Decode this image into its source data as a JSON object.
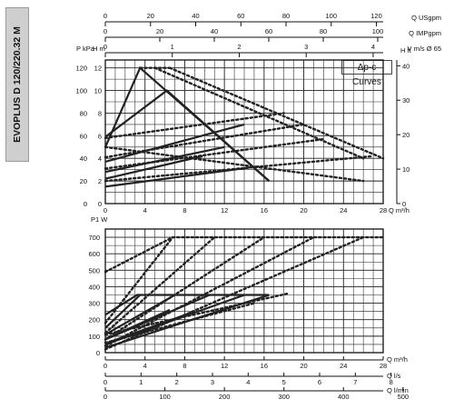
{
  "sidebar": {
    "model": "EVOPLUS D 120/220.32 M"
  },
  "chart_data": [
    {
      "type": "line",
      "title": "Δp-c Curves",
      "ylabel_left": "P kPa",
      "ylabel_right": "H m",
      "ylabel_right_ft": "H ft",
      "xlabel": "Q m³/h",
      "top_axes": [
        {
          "label": "Q USgpm",
          "ticks": [
            "0",
            "20",
            "40",
            "60",
            "80",
            "100",
            "120"
          ]
        },
        {
          "label": "Q IMPgpm",
          "ticks": [
            "0",
            "20",
            "40",
            "60",
            "80",
            "100"
          ]
        },
        {
          "label": "V m/s Ø 65",
          "ticks": [
            "0",
            "1",
            "2",
            "3",
            "4"
          ]
        }
      ],
      "x_ticks": [
        "0",
        "4",
        "8",
        "12",
        "16",
        "20",
        "24",
        "28"
      ],
      "y_kpa_ticks": [
        "0",
        "20",
        "40",
        "60",
        "80",
        "100",
        "120"
      ],
      "y_m_ticks": [
        "0",
        "2",
        "4",
        "6",
        "8",
        "10",
        "12"
      ],
      "y_ft_ticks": [
        "0",
        "10",
        "20",
        "30",
        "40"
      ],
      "xlim": [
        0,
        28
      ],
      "ylim_m": [
        0,
        12.7
      ],
      "grid": true,
      "series_solid": [
        {
          "x": [
            0,
            3.5,
            16.5
          ],
          "y": [
            5,
            12,
            2
          ]
        },
        {
          "x": [
            0,
            14
          ],
          "y": [
            3.7,
            7
          ]
        },
        {
          "x": [
            0,
            12
          ],
          "y": [
            2.8,
            5
          ]
        },
        {
          "x": [
            0,
            9.8
          ],
          "y": [
            2.2,
            4.2
          ]
        },
        {
          "x": [
            0,
            15.5
          ],
          "y": [
            1.5,
            3.3
          ]
        },
        {
          "x": [
            0,
            6.2,
            16.5
          ],
          "y": [
            5.9,
            10,
            2
          ]
        }
      ],
      "series_dotted": [
        {
          "x": [
            6.5,
            28
          ],
          "y": [
            12,
            4
          ]
        },
        {
          "x": [
            0,
            18
          ],
          "y": [
            5.8,
            8
          ]
        },
        {
          "x": [
            0,
            20
          ],
          "y": [
            4.1,
            7
          ]
        },
        {
          "x": [
            0,
            22
          ],
          "y": [
            3.1,
            5.7
          ]
        },
        {
          "x": [
            0,
            27
          ],
          "y": [
            2,
            4.2
          ]
        },
        {
          "x": [
            3.5,
            6.5
          ],
          "y": [
            12,
            12
          ]
        },
        {
          "x": [
            0,
            26
          ],
          "y": [
            5,
            2
          ]
        },
        {
          "x": [
            5,
            26
          ],
          "y": [
            12,
            4
          ]
        }
      ]
    },
    {
      "type": "line",
      "ylabel": "P1 W",
      "xlabel": "Q m³/h",
      "bottom_axes": [
        {
          "label": "Q m³/h",
          "ticks": [
            "0",
            "4",
            "8",
            "12",
            "16",
            "20",
            "24",
            "28"
          ]
        },
        {
          "label": "Q l/s",
          "ticks": [
            "0",
            "1",
            "2",
            "3",
            "4",
            "5",
            "6",
            "7",
            "8"
          ]
        },
        {
          "label": "Q l/min",
          "ticks": [
            "0",
            "100",
            "200",
            "300",
            "400",
            "500"
          ]
        }
      ],
      "y_ticks": [
        "0",
        "100",
        "200",
        "300",
        "400",
        "500",
        "600",
        "700"
      ],
      "xlim": [
        0,
        28
      ],
      "ylim": [
        0,
        750
      ],
      "grid": true,
      "series_solid": [
        {
          "x": [
            0,
            3.2,
            16.5
          ],
          "y": [
            230,
            350,
            350
          ]
        },
        {
          "x": [
            0,
            3.5
          ],
          "y": [
            150,
            350
          ]
        },
        {
          "x": [
            0,
            7
          ],
          "y": [
            110,
            350
          ]
        },
        {
          "x": [
            0,
            10.5
          ],
          "y": [
            80,
            350
          ]
        },
        {
          "x": [
            0,
            14
          ],
          "y": [
            50,
            350
          ]
        },
        {
          "x": [
            0,
            16.5
          ],
          "y": [
            30,
            350
          ]
        },
        {
          "x": [
            0,
            6.5
          ],
          "y": [
            80,
            260
          ]
        },
        {
          "x": [
            0,
            9
          ],
          "y": [
            55,
            250
          ]
        }
      ],
      "series_dotted": [
        {
          "x": [
            0,
            6.8,
            28
          ],
          "y": [
            490,
            700,
            700
          ]
        },
        {
          "x": [
            0,
            6.8
          ],
          "y": [
            180,
            700
          ]
        },
        {
          "x": [
            0,
            11
          ],
          "y": [
            120,
            700
          ]
        },
        {
          "x": [
            0,
            16
          ],
          "y": [
            80,
            700
          ]
        },
        {
          "x": [
            0,
            21
          ],
          "y": [
            40,
            700
          ]
        },
        {
          "x": [
            0,
            26
          ],
          "y": [
            20,
            700
          ]
        },
        {
          "x": [
            0,
            18.5
          ],
          "y": [
            110,
            360
          ]
        },
        {
          "x": [
            0,
            15
          ],
          "y": [
            60,
            300
          ]
        }
      ]
    }
  ]
}
